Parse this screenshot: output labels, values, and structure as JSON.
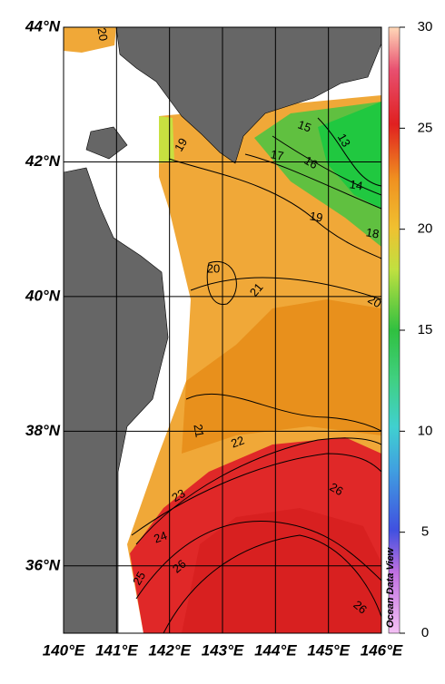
{
  "map": {
    "xlim": [
      140,
      146
    ],
    "ylim": [
      35,
      44
    ],
    "xticks": [
      {
        "value": 140,
        "label": "140°E"
      },
      {
        "value": 141,
        "label": "141°E"
      },
      {
        "value": 142,
        "label": "142°E"
      },
      {
        "value": 143,
        "label": "143°E"
      },
      {
        "value": 144,
        "label": "144°E"
      },
      {
        "value": 145,
        "label": "145°E"
      },
      {
        "value": 146,
        "label": "146°E"
      }
    ],
    "yticks": [
      {
        "value": 44,
        "label": "44°N"
      },
      {
        "value": 42,
        "label": "42°N"
      },
      {
        "value": 40,
        "label": "40°N"
      },
      {
        "value": 38,
        "label": "38°N"
      },
      {
        "value": 36,
        "label": "36°N"
      }
    ],
    "colorbar": {
      "lim": [
        0,
        30
      ],
      "ticks": [
        0,
        5,
        10,
        15,
        20,
        25,
        30
      ]
    },
    "contour_labels": [
      "20",
      "19",
      "15",
      "13",
      "17",
      "16",
      "14",
      "19",
      "18",
      "20",
      "21",
      "20",
      "21",
      "22",
      "23",
      "26",
      "24",
      "26",
      "25",
      "26"
    ],
    "watermark": "Ocean Data View"
  }
}
